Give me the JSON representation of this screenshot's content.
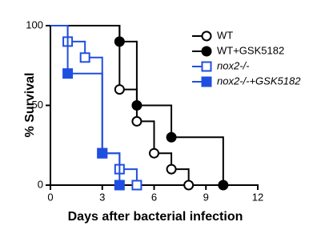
{
  "chart_data": {
    "type": "survival",
    "x_label": "Days after bacterial infection",
    "y_label": "% Survival",
    "xlim": [
      0,
      12
    ],
    "ylim": [
      0,
      100
    ],
    "xticks": [
      0,
      3,
      6,
      9,
      12
    ],
    "yticks": [
      0,
      50,
      100
    ],
    "legend": "upper right",
    "series": [
      {
        "name": "WT",
        "color": "#000000",
        "marker": "circle",
        "filled": false,
        "x": [
          0,
          4,
          5,
          6,
          7,
          8
        ],
        "values": [
          100,
          60,
          40,
          20,
          10,
          0
        ]
      },
      {
        "name": "WT+GSK5182",
        "color": "#000000",
        "marker": "circle",
        "filled": true,
        "x": [
          0,
          4,
          5,
          7,
          10
        ],
        "values": [
          100,
          90,
          50,
          30,
          0
        ]
      },
      {
        "name": "nox2-/-",
        "color": "#1f4fe0",
        "marker": "square",
        "filled": false,
        "x": [
          0,
          1,
          2,
          3,
          4,
          5
        ],
        "values": [
          100,
          90,
          80,
          20,
          10,
          0
        ]
      },
      {
        "name": "nox2-/-+GSK5182",
        "color": "#1f4fe0",
        "marker": "square",
        "filled": true,
        "x": [
          0,
          1,
          3,
          4
        ],
        "values": [
          100,
          70,
          20,
          0
        ]
      }
    ]
  }
}
